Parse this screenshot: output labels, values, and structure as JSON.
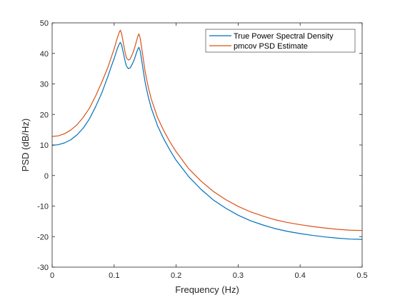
{
  "chart_data": {
    "type": "line",
    "title": "",
    "xlabel": "Frequency (Hz)",
    "ylabel": "PSD (dB/Hz)",
    "xlim": [
      0,
      0.5
    ],
    "ylim": [
      -30,
      50
    ],
    "xticks": [
      0,
      0.1,
      0.2,
      0.3,
      0.4,
      0.5
    ],
    "xtick_labels": [
      "0",
      "0.1",
      "0.2",
      "0.3",
      "0.4",
      "0.5"
    ],
    "yticks": [
      -30,
      -20,
      -10,
      0,
      10,
      20,
      30,
      40,
      50
    ],
    "ytick_labels": [
      "-30",
      "-20",
      "-10",
      "0",
      "10",
      "20",
      "30",
      "40",
      "50"
    ],
    "grid": false,
    "legend_position": "top-right",
    "series": [
      {
        "name": "True Power Spectral Density",
        "color": "#0072BD",
        "x": [
          0,
          0.01,
          0.02,
          0.03,
          0.04,
          0.05,
          0.06,
          0.07,
          0.08,
          0.09,
          0.095,
          0.1,
          0.105,
          0.108,
          0.11,
          0.112,
          0.115,
          0.118,
          0.12,
          0.123,
          0.126,
          0.13,
          0.133,
          0.136,
          0.138,
          0.14,
          0.142,
          0.145,
          0.148,
          0.15,
          0.155,
          0.16,
          0.17,
          0.18,
          0.19,
          0.2,
          0.22,
          0.24,
          0.26,
          0.28,
          0.3,
          0.32,
          0.34,
          0.36,
          0.38,
          0.4,
          0.42,
          0.44,
          0.46,
          0.48,
          0.5
        ],
        "y": [
          9.9,
          10.1,
          10.7,
          11.7,
          13.3,
          15.5,
          18.5,
          22.5,
          27.0,
          32.5,
          35.5,
          38.3,
          41.5,
          43.0,
          43.6,
          42.8,
          40.0,
          37.2,
          35.8,
          35.0,
          35.3,
          36.8,
          38.3,
          40.2,
          41.3,
          42.0,
          40.8,
          37.0,
          33.0,
          30.5,
          25.8,
          22.0,
          16.3,
          12.0,
          8.3,
          5.0,
          -0.3,
          -4.5,
          -8.0,
          -10.7,
          -13.0,
          -14.8,
          -16.2,
          -17.4,
          -18.3,
          -19.0,
          -19.6,
          -20.1,
          -20.5,
          -20.8,
          -20.9
        ]
      },
      {
        "name": "pmcov PSD Estimate",
        "color": "#D95319",
        "x": [
          0,
          0.01,
          0.02,
          0.03,
          0.04,
          0.05,
          0.06,
          0.07,
          0.08,
          0.09,
          0.095,
          0.1,
          0.105,
          0.108,
          0.11,
          0.112,
          0.115,
          0.118,
          0.12,
          0.123,
          0.126,
          0.13,
          0.133,
          0.136,
          0.138,
          0.14,
          0.142,
          0.145,
          0.148,
          0.15,
          0.155,
          0.16,
          0.17,
          0.18,
          0.19,
          0.2,
          0.22,
          0.24,
          0.26,
          0.28,
          0.3,
          0.32,
          0.34,
          0.36,
          0.38,
          0.4,
          0.42,
          0.44,
          0.46,
          0.48,
          0.5
        ],
        "y": [
          12.8,
          13.0,
          13.7,
          14.9,
          16.6,
          19.0,
          22.0,
          26.0,
          30.5,
          35.5,
          38.5,
          41.5,
          45.0,
          46.8,
          47.6,
          46.5,
          43.2,
          40.0,
          38.5,
          37.8,
          38.2,
          40.0,
          41.8,
          44.0,
          45.5,
          46.4,
          45.0,
          41.0,
          36.8,
          34.0,
          29.0,
          25.0,
          19.0,
          14.7,
          11.0,
          7.8,
          2.3,
          -1.8,
          -5.2,
          -7.9,
          -10.1,
          -11.9,
          -13.3,
          -14.5,
          -15.4,
          -16.1,
          -16.7,
          -17.2,
          -17.6,
          -17.9,
          -18.0
        ]
      }
    ]
  }
}
